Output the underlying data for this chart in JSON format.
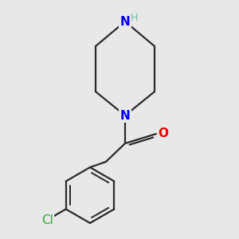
{
  "bg_color": "#e8e8e8",
  "bond_color": "#2a2a2a",
  "N_color": "#0000ee",
  "O_color": "#ee0000",
  "Cl_color": "#33aa33",
  "H_color": "#7ab8b8",
  "label_N": "N",
  "label_NH": "H",
  "label_O": "O",
  "label_Cl": "Cl",
  "figsize": [
    3.0,
    3.0
  ],
  "dpi": 100
}
